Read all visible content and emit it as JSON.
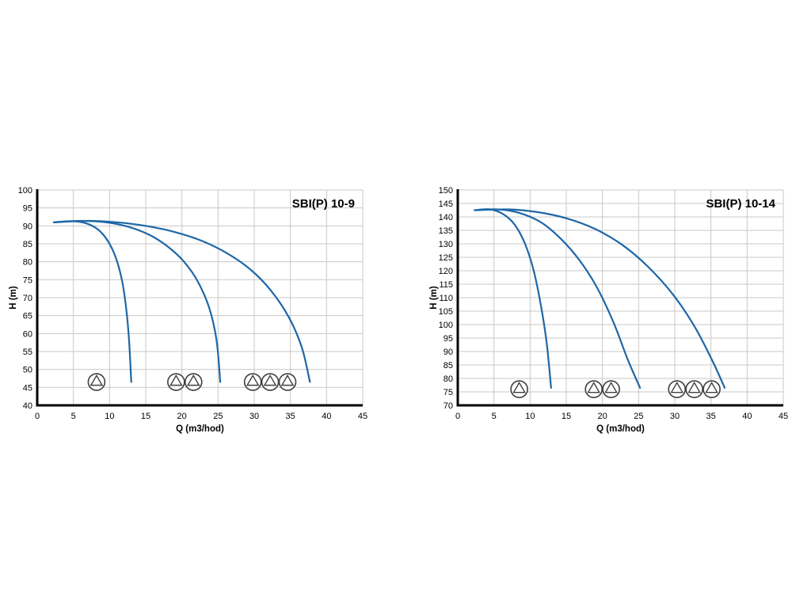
{
  "page": {
    "background": "#ffffff"
  },
  "chart_data": [
    {
      "type": "line",
      "title": "SBI(P) 10-9",
      "xlabel": "Q (m3/hod)",
      "ylabel": "H (m)",
      "xlim": [
        0,
        45
      ],
      "ylim": [
        40,
        100
      ],
      "xticks": [
        0,
        5,
        10,
        15,
        20,
        25,
        30,
        35,
        40,
        45
      ],
      "yticks": [
        40,
        45,
        50,
        55,
        60,
        65,
        70,
        75,
        80,
        85,
        90,
        95,
        100
      ],
      "grid": true,
      "colors": {
        "curve": "#1e67a7",
        "grid": "#c8c8c8",
        "axis": "#000000",
        "pump": "#3f3f3f"
      },
      "series": [
        {
          "name": "1-pump-curve",
          "points": [
            [
              2.3,
              91
            ],
            [
              4.8,
              91.3
            ],
            [
              6.8,
              90.7
            ],
            [
              8.4,
              89
            ],
            [
              9.7,
              86
            ],
            [
              10.8,
              81.5
            ],
            [
              11.7,
              75
            ],
            [
              12.3,
              67
            ],
            [
              12.7,
              58
            ],
            [
              13,
              46.5
            ]
          ]
        },
        {
          "name": "2-pump-curve",
          "points": [
            [
              2.3,
              91
            ],
            [
              6,
              91.4
            ],
            [
              9.5,
              91
            ],
            [
              12.5,
              89.8
            ],
            [
              15.5,
              87.5
            ],
            [
              18,
              84.3
            ],
            [
              20.3,
              80
            ],
            [
              22.2,
              74.5
            ],
            [
              23.8,
              67
            ],
            [
              24.8,
              58
            ],
            [
              25.3,
              46.5
            ]
          ]
        },
        {
          "name": "3-pump-curve",
          "points": [
            [
              2.3,
              91
            ],
            [
              7,
              91.4
            ],
            [
              11,
              91
            ],
            [
              15,
              90
            ],
            [
              19,
              88.3
            ],
            [
              22.8,
              85.8
            ],
            [
              26.3,
              82.3
            ],
            [
              29.5,
              77.8
            ],
            [
              32.3,
              72
            ],
            [
              34.8,
              64.5
            ],
            [
              36.6,
              56
            ],
            [
              37.7,
              46.5
            ]
          ]
        }
      ],
      "pump_icons": {
        "y": 46.5,
        "groups": [
          [
            8.2
          ],
          [
            19.2,
            21.6
          ],
          [
            29.8,
            32.2,
            34.6
          ]
        ]
      }
    },
    {
      "type": "line",
      "title": "SBI(P) 10-14",
      "xlabel": "Q (m3/hod)",
      "ylabel": "H (m)",
      "xlim": [
        0,
        45
      ],
      "ylim": [
        70,
        150
      ],
      "xticks": [
        0,
        5,
        10,
        15,
        20,
        25,
        30,
        35,
        40,
        45
      ],
      "yticks": [
        70,
        75,
        80,
        85,
        90,
        95,
        100,
        105,
        110,
        115,
        120,
        125,
        130,
        135,
        140,
        145,
        150
      ],
      "grid": true,
      "colors": {
        "curve": "#1e67a7",
        "grid": "#c8c8c8",
        "axis": "#000000",
        "pump": "#3f3f3f"
      },
      "series": [
        {
          "name": "1-pump-curve",
          "points": [
            [
              2.3,
              142.5
            ],
            [
              4.5,
              142.8
            ],
            [
              6.3,
              141
            ],
            [
              7.9,
              137
            ],
            [
              9.3,
              130
            ],
            [
              10.5,
              120
            ],
            [
              11.5,
              107
            ],
            [
              12.3,
              93
            ],
            [
              12.9,
              76.5
            ]
          ]
        },
        {
          "name": "2-pump-curve",
          "points": [
            [
              2.6,
              142.5
            ],
            [
              5.5,
              142.8
            ],
            [
              8.5,
              141.5
            ],
            [
              11.5,
              138
            ],
            [
              14.2,
              132
            ],
            [
              16.8,
              124
            ],
            [
              19.2,
              114
            ],
            [
              21.5,
              101
            ],
            [
              23.5,
              87
            ],
            [
              25.2,
              76.5
            ]
          ]
        },
        {
          "name": "3-pump-curve",
          "points": [
            [
              2.6,
              142.5
            ],
            [
              7,
              142.8
            ],
            [
              11,
              141.8
            ],
            [
              15,
              139.5
            ],
            [
              19,
              135.5
            ],
            [
              22.8,
              129.5
            ],
            [
              26.3,
              121.5
            ],
            [
              29.8,
              111
            ],
            [
              32.8,
              99
            ],
            [
              35.3,
              86
            ],
            [
              36.9,
              76.5
            ]
          ]
        }
      ],
      "pump_icons": {
        "y": 76,
        "groups": [
          [
            8.5
          ],
          [
            18.8,
            21.2
          ],
          [
            30.3,
            32.7,
            35.1
          ]
        ]
      }
    }
  ]
}
